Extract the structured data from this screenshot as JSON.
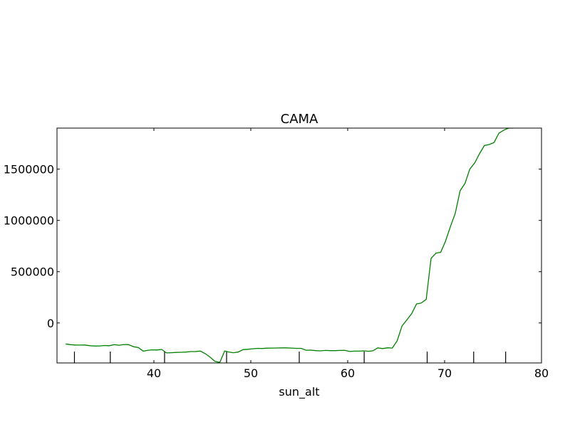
{
  "chart_data": {
    "type": "line",
    "title": "CAMA",
    "xlabel": "sun_alt",
    "ylabel": "",
    "xlim": [
      30,
      80
    ],
    "ylim": [
      -390000,
      1900000
    ],
    "xticks": [
      40,
      50,
      60,
      70,
      80
    ],
    "xtick_labels": [
      "40",
      "50",
      "60",
      "70",
      "80"
    ],
    "yticks": [
      0,
      500000,
      1000000,
      1500000
    ],
    "ytick_labels": [
      "0",
      "500000",
      "1000000",
      "1500000"
    ],
    "grid": false,
    "line_color": "#008000",
    "rug_x": [
      31.8,
      35.5,
      41.1,
      47.5,
      55.0,
      61.7,
      68.2,
      73.0,
      76.3
    ],
    "series": [
      {
        "x": [
          30.9,
          31.4,
          31.9,
          32.4,
          32.9,
          33.4,
          33.9,
          34.4,
          34.9,
          35.4,
          35.9,
          36.4,
          36.9,
          37.4,
          37.9,
          38.4,
          38.9,
          39.3,
          39.8,
          40.3,
          40.8,
          41.3,
          41.8,
          42.3,
          42.8,
          43.3,
          43.8,
          44.3,
          44.8,
          45.3,
          45.8,
          46.3,
          46.8,
          47.3,
          47.7,
          48.2,
          48.7,
          49.2,
          49.7,
          50.2,
          50.7,
          51.2,
          51.7,
          52.2,
          52.7,
          53.2,
          53.7,
          54.2,
          54.7,
          55.2,
          55.7,
          56.2,
          56.7,
          57.2,
          57.7,
          58.2,
          58.7,
          59.2,
          59.7,
          60.2,
          60.7,
          61.2,
          61.7,
          62.2,
          62.6,
          63.1,
          63.6,
          64.1,
          64.6,
          65.1,
          65.6,
          66.1,
          66.6,
          67.1,
          67.6,
          68.1,
          68.6,
          69.1,
          69.6,
          70.1,
          70.6,
          71.1,
          71.6,
          72.1,
          72.6,
          73.1,
          73.6,
          74.1,
          74.6,
          75.1,
          75.6,
          76.1,
          76.6,
          77.1
        ],
        "y": [
          -205000,
          -212000,
          -215000,
          -216000,
          -215000,
          -222000,
          -225000,
          -224000,
          -220000,
          -222000,
          -212000,
          -217000,
          -210000,
          -212000,
          -232000,
          -240000,
          -275000,
          -268000,
          -262000,
          -264000,
          -258000,
          -292000,
          -290000,
          -287000,
          -286000,
          -284000,
          -279000,
          -279000,
          -274000,
          -300000,
          -334000,
          -375000,
          -385000,
          -274000,
          -283000,
          -290000,
          -284000,
          -260000,
          -257000,
          -252000,
          -248000,
          -249000,
          -246000,
          -245000,
          -244000,
          -243000,
          -243000,
          -245000,
          -248000,
          -248000,
          -266000,
          -265000,
          -270000,
          -272000,
          -268000,
          -270000,
          -270000,
          -268000,
          -267000,
          -278000,
          -275000,
          -275000,
          -272000,
          -276000,
          -271000,
          -243000,
          -250000,
          -242000,
          -245000,
          -175000,
          -30000,
          30000,
          90000,
          185000,
          195000,
          230000,
          630000,
          680000,
          690000,
          800000,
          940000,
          1070000,
          1290000,
          1360000,
          1500000,
          1560000,
          1650000,
          1730000,
          1740000,
          1760000,
          1850000,
          1880000,
          1900000,
          1900000
        ]
      }
    ]
  }
}
